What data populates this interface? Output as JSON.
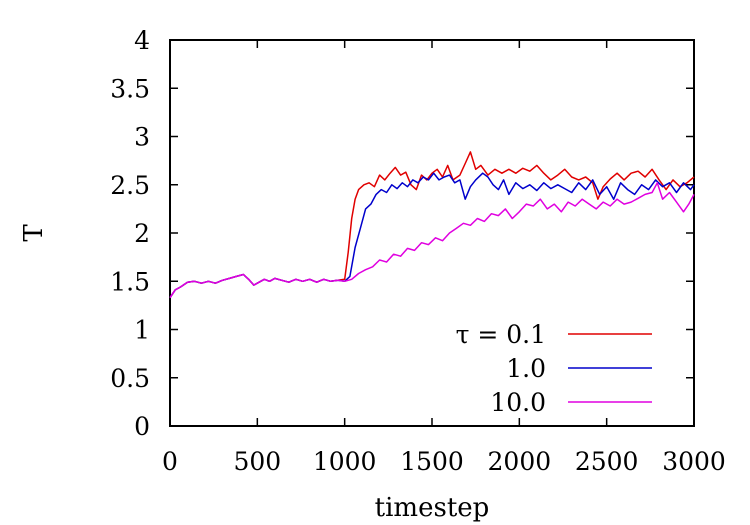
{
  "chart_data": {
    "type": "line",
    "xlabel": "timestep",
    "ylabel": "T",
    "xlim": [
      0,
      3000
    ],
    "ylim": [
      0,
      4
    ],
    "x_ticks": [
      "0",
      "500",
      "1000",
      "1500",
      "2000",
      "2500",
      "3000"
    ],
    "y_ticks": [
      "0",
      "0.5",
      "1",
      "1.5",
      "2",
      "2.5",
      "3",
      "3.5",
      "4"
    ],
    "grid": false,
    "legend_position": "bottom-right",
    "series": [
      {
        "name": "τ = 0.1",
        "color": "#e00000",
        "points": [
          [
            0,
            1.33
          ],
          [
            30,
            1.41
          ],
          [
            60,
            1.44
          ],
          [
            100,
            1.49
          ],
          [
            140,
            1.5
          ],
          [
            180,
            1.48
          ],
          [
            220,
            1.5
          ],
          [
            260,
            1.48
          ],
          [
            300,
            1.51
          ],
          [
            340,
            1.53
          ],
          [
            380,
            1.55
          ],
          [
            420,
            1.57
          ],
          [
            450,
            1.52
          ],
          [
            480,
            1.46
          ],
          [
            510,
            1.49
          ],
          [
            540,
            1.52
          ],
          [
            570,
            1.5
          ],
          [
            600,
            1.53
          ],
          [
            640,
            1.51
          ],
          [
            680,
            1.49
          ],
          [
            720,
            1.52
          ],
          [
            760,
            1.5
          ],
          [
            800,
            1.52
          ],
          [
            840,
            1.49
          ],
          [
            880,
            1.52
          ],
          [
            920,
            1.5
          ],
          [
            960,
            1.51
          ],
          [
            1000,
            1.52
          ],
          [
            1020,
            1.8
          ],
          [
            1040,
            2.15
          ],
          [
            1060,
            2.35
          ],
          [
            1080,
            2.45
          ],
          [
            1110,
            2.5
          ],
          [
            1140,
            2.52
          ],
          [
            1170,
            2.48
          ],
          [
            1200,
            2.6
          ],
          [
            1230,
            2.55
          ],
          [
            1260,
            2.62
          ],
          [
            1290,
            2.68
          ],
          [
            1320,
            2.6
          ],
          [
            1350,
            2.63
          ],
          [
            1380,
            2.5
          ],
          [
            1410,
            2.45
          ],
          [
            1440,
            2.6
          ],
          [
            1470,
            2.55
          ],
          [
            1500,
            2.62
          ],
          [
            1530,
            2.66
          ],
          [
            1560,
            2.58
          ],
          [
            1590,
            2.7
          ],
          [
            1620,
            2.55
          ],
          [
            1660,
            2.6
          ],
          [
            1690,
            2.72
          ],
          [
            1720,
            2.84
          ],
          [
            1750,
            2.66
          ],
          [
            1780,
            2.7
          ],
          [
            1820,
            2.6
          ],
          [
            1860,
            2.66
          ],
          [
            1900,
            2.62
          ],
          [
            1940,
            2.66
          ],
          [
            1980,
            2.62
          ],
          [
            2020,
            2.67
          ],
          [
            2060,
            2.64
          ],
          [
            2100,
            2.7
          ],
          [
            2140,
            2.62
          ],
          [
            2180,
            2.55
          ],
          [
            2220,
            2.6
          ],
          [
            2260,
            2.66
          ],
          [
            2300,
            2.58
          ],
          [
            2340,
            2.55
          ],
          [
            2380,
            2.58
          ],
          [
            2420,
            2.52
          ],
          [
            2450,
            2.35
          ],
          [
            2480,
            2.48
          ],
          [
            2520,
            2.56
          ],
          [
            2560,
            2.62
          ],
          [
            2600,
            2.55
          ],
          [
            2640,
            2.62
          ],
          [
            2680,
            2.64
          ],
          [
            2720,
            2.58
          ],
          [
            2760,
            2.66
          ],
          [
            2800,
            2.55
          ],
          [
            2840,
            2.45
          ],
          [
            2880,
            2.55
          ],
          [
            2920,
            2.48
          ],
          [
            2960,
            2.52
          ],
          [
            3000,
            2.58
          ]
        ]
      },
      {
        "name": "1.0",
        "color": "#0000cc",
        "points": [
          [
            0,
            1.33
          ],
          [
            30,
            1.41
          ],
          [
            60,
            1.44
          ],
          [
            100,
            1.49
          ],
          [
            140,
            1.5
          ],
          [
            180,
            1.48
          ],
          [
            220,
            1.5
          ],
          [
            260,
            1.48
          ],
          [
            300,
            1.51
          ],
          [
            340,
            1.53
          ],
          [
            380,
            1.55
          ],
          [
            420,
            1.57
          ],
          [
            450,
            1.52
          ],
          [
            480,
            1.46
          ],
          [
            510,
            1.49
          ],
          [
            540,
            1.52
          ],
          [
            570,
            1.5
          ],
          [
            600,
            1.53
          ],
          [
            640,
            1.51
          ],
          [
            680,
            1.49
          ],
          [
            720,
            1.52
          ],
          [
            760,
            1.5
          ],
          [
            800,
            1.52
          ],
          [
            840,
            1.49
          ],
          [
            880,
            1.52
          ],
          [
            920,
            1.5
          ],
          [
            960,
            1.51
          ],
          [
            1000,
            1.5
          ],
          [
            1030,
            1.55
          ],
          [
            1060,
            1.85
          ],
          [
            1090,
            2.05
          ],
          [
            1120,
            2.25
          ],
          [
            1150,
            2.3
          ],
          [
            1180,
            2.4
          ],
          [
            1210,
            2.45
          ],
          [
            1240,
            2.42
          ],
          [
            1270,
            2.5
          ],
          [
            1300,
            2.46
          ],
          [
            1330,
            2.52
          ],
          [
            1360,
            2.48
          ],
          [
            1390,
            2.55
          ],
          [
            1420,
            2.52
          ],
          [
            1450,
            2.58
          ],
          [
            1480,
            2.55
          ],
          [
            1510,
            2.62
          ],
          [
            1540,
            2.55
          ],
          [
            1570,
            2.58
          ],
          [
            1600,
            2.6
          ],
          [
            1630,
            2.52
          ],
          [
            1660,
            2.55
          ],
          [
            1690,
            2.35
          ],
          [
            1720,
            2.48
          ],
          [
            1750,
            2.55
          ],
          [
            1790,
            2.62
          ],
          [
            1820,
            2.58
          ],
          [
            1850,
            2.5
          ],
          [
            1880,
            2.45
          ],
          [
            1910,
            2.55
          ],
          [
            1940,
            2.4
          ],
          [
            1980,
            2.52
          ],
          [
            2020,
            2.46
          ],
          [
            2060,
            2.5
          ],
          [
            2100,
            2.44
          ],
          [
            2140,
            2.52
          ],
          [
            2180,
            2.46
          ],
          [
            2220,
            2.5
          ],
          [
            2260,
            2.46
          ],
          [
            2300,
            2.42
          ],
          [
            2340,
            2.52
          ],
          [
            2380,
            2.45
          ],
          [
            2420,
            2.55
          ],
          [
            2460,
            2.4
          ],
          [
            2500,
            2.48
          ],
          [
            2540,
            2.35
          ],
          [
            2580,
            2.52
          ],
          [
            2620,
            2.45
          ],
          [
            2660,
            2.4
          ],
          [
            2700,
            2.5
          ],
          [
            2740,
            2.45
          ],
          [
            2780,
            2.55
          ],
          [
            2820,
            2.48
          ],
          [
            2860,
            2.52
          ],
          [
            2900,
            2.42
          ],
          [
            2940,
            2.52
          ],
          [
            2980,
            2.45
          ],
          [
            3000,
            2.5
          ]
        ]
      },
      {
        "name": "10.0",
        "color": "#e000e0",
        "points": [
          [
            0,
            1.33
          ],
          [
            30,
            1.41
          ],
          [
            60,
            1.44
          ],
          [
            100,
            1.49
          ],
          [
            140,
            1.5
          ],
          [
            180,
            1.48
          ],
          [
            220,
            1.5
          ],
          [
            260,
            1.48
          ],
          [
            300,
            1.51
          ],
          [
            340,
            1.53
          ],
          [
            380,
            1.55
          ],
          [
            420,
            1.57
          ],
          [
            450,
            1.52
          ],
          [
            480,
            1.46
          ],
          [
            510,
            1.49
          ],
          [
            540,
            1.52
          ],
          [
            570,
            1.5
          ],
          [
            600,
            1.53
          ],
          [
            640,
            1.51
          ],
          [
            680,
            1.49
          ],
          [
            720,
            1.52
          ],
          [
            760,
            1.5
          ],
          [
            800,
            1.52
          ],
          [
            840,
            1.49
          ],
          [
            880,
            1.52
          ],
          [
            920,
            1.5
          ],
          [
            960,
            1.51
          ],
          [
            1000,
            1.5
          ],
          [
            1040,
            1.52
          ],
          [
            1080,
            1.58
          ],
          [
            1120,
            1.62
          ],
          [
            1160,
            1.65
          ],
          [
            1200,
            1.72
          ],
          [
            1240,
            1.7
          ],
          [
            1280,
            1.78
          ],
          [
            1320,
            1.76
          ],
          [
            1360,
            1.84
          ],
          [
            1400,
            1.82
          ],
          [
            1440,
            1.9
          ],
          [
            1480,
            1.88
          ],
          [
            1520,
            1.95
          ],
          [
            1560,
            1.92
          ],
          [
            1600,
            2.0
          ],
          [
            1640,
            2.05
          ],
          [
            1680,
            2.1
          ],
          [
            1720,
            2.08
          ],
          [
            1760,
            2.15
          ],
          [
            1800,
            2.12
          ],
          [
            1840,
            2.2
          ],
          [
            1880,
            2.18
          ],
          [
            1920,
            2.25
          ],
          [
            1960,
            2.15
          ],
          [
            2000,
            2.22
          ],
          [
            2040,
            2.3
          ],
          [
            2080,
            2.28
          ],
          [
            2120,
            2.35
          ],
          [
            2160,
            2.25
          ],
          [
            2200,
            2.3
          ],
          [
            2240,
            2.22
          ],
          [
            2280,
            2.32
          ],
          [
            2320,
            2.28
          ],
          [
            2360,
            2.35
          ],
          [
            2400,
            2.3
          ],
          [
            2440,
            2.25
          ],
          [
            2480,
            2.32
          ],
          [
            2520,
            2.28
          ],
          [
            2560,
            2.35
          ],
          [
            2600,
            2.3
          ],
          [
            2640,
            2.32
          ],
          [
            2680,
            2.36
          ],
          [
            2720,
            2.4
          ],
          [
            2760,
            2.42
          ],
          [
            2790,
            2.52
          ],
          [
            2820,
            2.35
          ],
          [
            2860,
            2.42
          ],
          [
            2900,
            2.32
          ],
          [
            2940,
            2.22
          ],
          [
            2970,
            2.3
          ],
          [
            3000,
            2.4
          ]
        ]
      }
    ]
  }
}
